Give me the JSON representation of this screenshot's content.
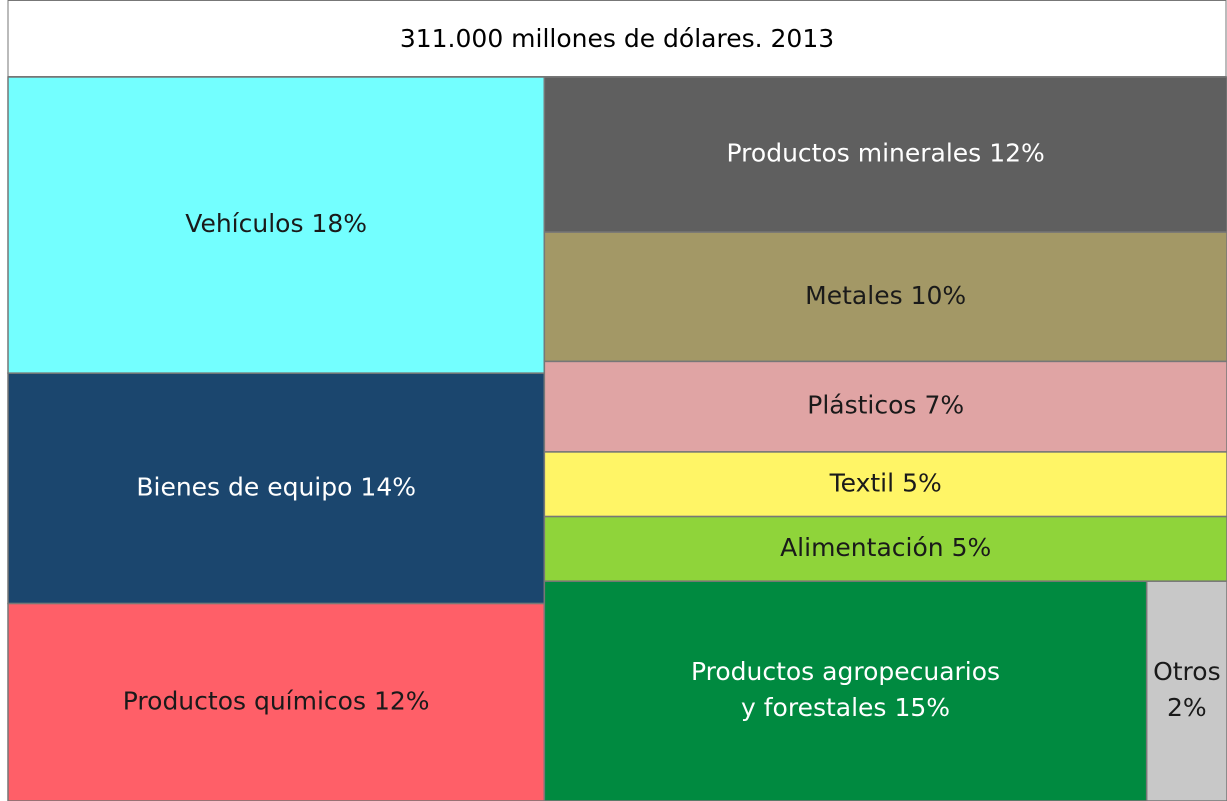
{
  "chart_data": {
    "type": "treemap",
    "title": "311.000 millones de dólares. 2013",
    "categories": [
      [
        "Vehículos"
      ],
      [
        "Bienes de equipo"
      ],
      [
        "Productos químicos"
      ],
      [
        "Productos minerales"
      ],
      [
        "Metales"
      ],
      [
        "Plásticos"
      ],
      [
        "Textil"
      ],
      [
        "Alimentación"
      ],
      [
        "Productos agropecuarios",
        "y forestales"
      ],
      [
        "Otros"
      ]
    ],
    "values": [
      18,
      14,
      12,
      12,
      10,
      7,
      5,
      5,
      15,
      2
    ],
    "value_labels": [
      "18%",
      "14%",
      "12%",
      "12%",
      "10%",
      "7%",
      "5%",
      "5%",
      "15%",
      "2%"
    ],
    "colors": [
      "#73ffff",
      "#1b466e",
      "#ff5f68",
      "#5f5f5f",
      "#a39866",
      "#e0a4a4",
      "#fff566",
      "#8fd43a",
      "#008a40",
      "#c8c8c8"
    ]
  }
}
